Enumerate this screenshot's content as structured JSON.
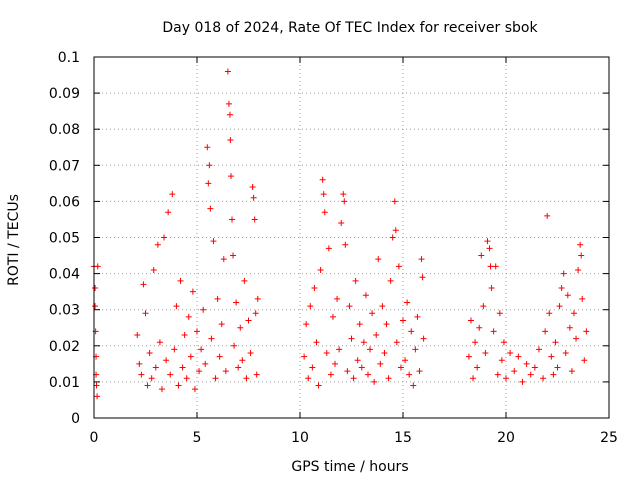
{
  "chart_data": {
    "type": "scatter",
    "title": "Day 018 of 2024, Rate Of TEC Index for receiver sbok",
    "xlabel": "GPS time / hours",
    "ylabel": "ROTI / TECUs",
    "xlim": [
      0,
      25
    ],
    "ylim": [
      0,
      0.1
    ],
    "xticks": [
      "0",
      "5",
      "10",
      "15",
      "20",
      "25"
    ],
    "yticks": [
      "0",
      "0.01",
      "0.02",
      "0.03",
      "0.04",
      "0.05",
      "0.06",
      "0.07",
      "0.08",
      "0.09",
      "0.1"
    ],
    "grid": true,
    "marker": "+",
    "color": "#ff0000",
    "series": [
      {
        "points": [
          [
            0.0,
            0.042
          ],
          [
            0.05,
            0.036
          ],
          [
            0.05,
            0.031
          ],
          [
            0.08,
            0.024
          ],
          [
            0.1,
            0.017
          ],
          [
            0.1,
            0.012
          ],
          [
            0.12,
            0.009
          ],
          [
            0.15,
            0.006
          ],
          [
            0.18,
            0.042
          ],
          [
            2.1,
            0.023
          ],
          [
            2.2,
            0.015
          ],
          [
            2.3,
            0.012
          ],
          [
            2.4,
            0.037
          ],
          [
            2.5,
            0.029
          ],
          [
            2.6,
            0.009
          ],
          [
            2.7,
            0.018
          ],
          [
            2.8,
            0.011
          ],
          [
            2.9,
            0.041
          ],
          [
            3.0,
            0.014
          ],
          [
            3.1,
            0.048
          ],
          [
            3.2,
            0.021
          ],
          [
            3.3,
            0.008
          ],
          [
            3.4,
            0.05
          ],
          [
            3.5,
            0.016
          ],
          [
            3.6,
            0.057
          ],
          [
            3.7,
            0.012
          ],
          [
            3.8,
            0.062
          ],
          [
            3.9,
            0.019
          ],
          [
            4.0,
            0.031
          ],
          [
            4.1,
            0.009
          ],
          [
            4.2,
            0.038
          ],
          [
            4.3,
            0.014
          ],
          [
            4.4,
            0.023
          ],
          [
            4.5,
            0.011
          ],
          [
            4.6,
            0.028
          ],
          [
            4.7,
            0.017
          ],
          [
            4.8,
            0.035
          ],
          [
            4.9,
            0.008
          ],
          [
            5.0,
            0.024
          ],
          [
            5.1,
            0.013
          ],
          [
            5.2,
            0.019
          ],
          [
            5.3,
            0.03
          ],
          [
            5.4,
            0.015
          ],
          [
            5.5,
            0.075
          ],
          [
            5.55,
            0.065
          ],
          [
            5.6,
            0.07
          ],
          [
            5.65,
            0.058
          ],
          [
            5.7,
            0.022
          ],
          [
            5.8,
            0.049
          ],
          [
            5.9,
            0.011
          ],
          [
            6.0,
            0.033
          ],
          [
            6.1,
            0.017
          ],
          [
            6.2,
            0.026
          ],
          [
            6.3,
            0.044
          ],
          [
            6.4,
            0.013
          ],
          [
            6.5,
            0.096
          ],
          [
            6.55,
            0.087
          ],
          [
            6.6,
            0.084
          ],
          [
            6.62,
            0.077
          ],
          [
            6.65,
            0.067
          ],
          [
            6.7,
            0.055
          ],
          [
            6.75,
            0.045
          ],
          [
            6.8,
            0.02
          ],
          [
            6.9,
            0.032
          ],
          [
            7.0,
            0.014
          ],
          [
            7.1,
            0.025
          ],
          [
            7.2,
            0.016
          ],
          [
            7.3,
            0.038
          ],
          [
            7.4,
            0.011
          ],
          [
            7.5,
            0.027
          ],
          [
            7.6,
            0.018
          ],
          [
            7.7,
            0.064
          ],
          [
            7.75,
            0.061
          ],
          [
            7.8,
            0.055
          ],
          [
            7.85,
            0.029
          ],
          [
            7.9,
            0.012
          ],
          [
            7.95,
            0.033
          ],
          [
            10.2,
            0.017
          ],
          [
            10.3,
            0.026
          ],
          [
            10.4,
            0.011
          ],
          [
            10.5,
            0.031
          ],
          [
            10.6,
            0.014
          ],
          [
            10.7,
            0.036
          ],
          [
            10.8,
            0.021
          ],
          [
            10.9,
            0.009
          ],
          [
            11.0,
            0.041
          ],
          [
            11.1,
            0.066
          ],
          [
            11.15,
            0.062
          ],
          [
            11.2,
            0.057
          ],
          [
            11.3,
            0.018
          ],
          [
            11.4,
            0.047
          ],
          [
            11.5,
            0.012
          ],
          [
            11.6,
            0.028
          ],
          [
            11.7,
            0.015
          ],
          [
            11.8,
            0.033
          ],
          [
            11.9,
            0.019
          ],
          [
            12.0,
            0.054
          ],
          [
            12.1,
            0.062
          ],
          [
            12.15,
            0.06
          ],
          [
            12.2,
            0.048
          ],
          [
            12.3,
            0.013
          ],
          [
            12.4,
            0.031
          ],
          [
            12.5,
            0.022
          ],
          [
            12.6,
            0.011
          ],
          [
            12.7,
            0.038
          ],
          [
            12.8,
            0.016
          ],
          [
            12.9,
            0.026
          ],
          [
            13.0,
            0.014
          ],
          [
            13.1,
            0.021
          ],
          [
            13.2,
            0.034
          ],
          [
            13.3,
            0.012
          ],
          [
            13.4,
            0.019
          ],
          [
            13.5,
            0.029
          ],
          [
            13.6,
            0.01
          ],
          [
            13.7,
            0.023
          ],
          [
            13.8,
            0.044
          ],
          [
            13.9,
            0.015
          ],
          [
            14.0,
            0.031
          ],
          [
            14.1,
            0.018
          ],
          [
            14.2,
            0.026
          ],
          [
            14.3,
            0.011
          ],
          [
            14.4,
            0.038
          ],
          [
            14.5,
            0.05
          ],
          [
            14.6,
            0.06
          ],
          [
            14.65,
            0.052
          ],
          [
            14.7,
            0.021
          ],
          [
            14.8,
            0.042
          ],
          [
            14.9,
            0.014
          ],
          [
            15.0,
            0.027
          ],
          [
            15.1,
            0.016
          ],
          [
            15.2,
            0.032
          ],
          [
            15.3,
            0.012
          ],
          [
            15.4,
            0.024
          ],
          [
            15.5,
            0.009
          ],
          [
            15.6,
            0.019
          ],
          [
            15.7,
            0.028
          ],
          [
            15.8,
            0.013
          ],
          [
            15.9,
            0.044
          ],
          [
            15.95,
            0.039
          ],
          [
            16.0,
            0.022
          ],
          [
            18.2,
            0.017
          ],
          [
            18.3,
            0.027
          ],
          [
            18.4,
            0.011
          ],
          [
            18.5,
            0.021
          ],
          [
            18.6,
            0.014
          ],
          [
            18.7,
            0.025
          ],
          [
            18.8,
            0.045
          ],
          [
            18.9,
            0.031
          ],
          [
            19.0,
            0.018
          ],
          [
            19.1,
            0.049
          ],
          [
            19.2,
            0.047
          ],
          [
            19.25,
            0.042
          ],
          [
            19.3,
            0.036
          ],
          [
            19.4,
            0.024
          ],
          [
            19.5,
            0.042
          ],
          [
            19.6,
            0.012
          ],
          [
            19.7,
            0.029
          ],
          [
            19.8,
            0.016
          ],
          [
            19.9,
            0.021
          ],
          [
            20.0,
            0.011
          ],
          [
            20.2,
            0.018
          ],
          [
            20.4,
            0.013
          ],
          [
            20.6,
            0.017
          ],
          [
            20.8,
            0.01
          ],
          [
            21.0,
            0.015
          ],
          [
            21.2,
            0.012
          ],
          [
            21.4,
            0.014
          ],
          [
            21.6,
            0.019
          ],
          [
            21.8,
            0.011
          ],
          [
            21.9,
            0.024
          ],
          [
            22.0,
            0.056
          ],
          [
            22.1,
            0.029
          ],
          [
            22.2,
            0.017
          ],
          [
            22.3,
            0.012
          ],
          [
            22.4,
            0.021
          ],
          [
            22.5,
            0.014
          ],
          [
            22.6,
            0.031
          ],
          [
            22.7,
            0.036
          ],
          [
            22.8,
            0.04
          ],
          [
            22.9,
            0.018
          ],
          [
            23.0,
            0.034
          ],
          [
            23.1,
            0.025
          ],
          [
            23.2,
            0.013
          ],
          [
            23.3,
            0.029
          ],
          [
            23.4,
            0.022
          ],
          [
            23.5,
            0.041
          ],
          [
            23.6,
            0.048
          ],
          [
            23.65,
            0.045
          ],
          [
            23.7,
            0.033
          ],
          [
            23.8,
            0.016
          ],
          [
            23.9,
            0.024
          ]
        ]
      }
    ]
  }
}
